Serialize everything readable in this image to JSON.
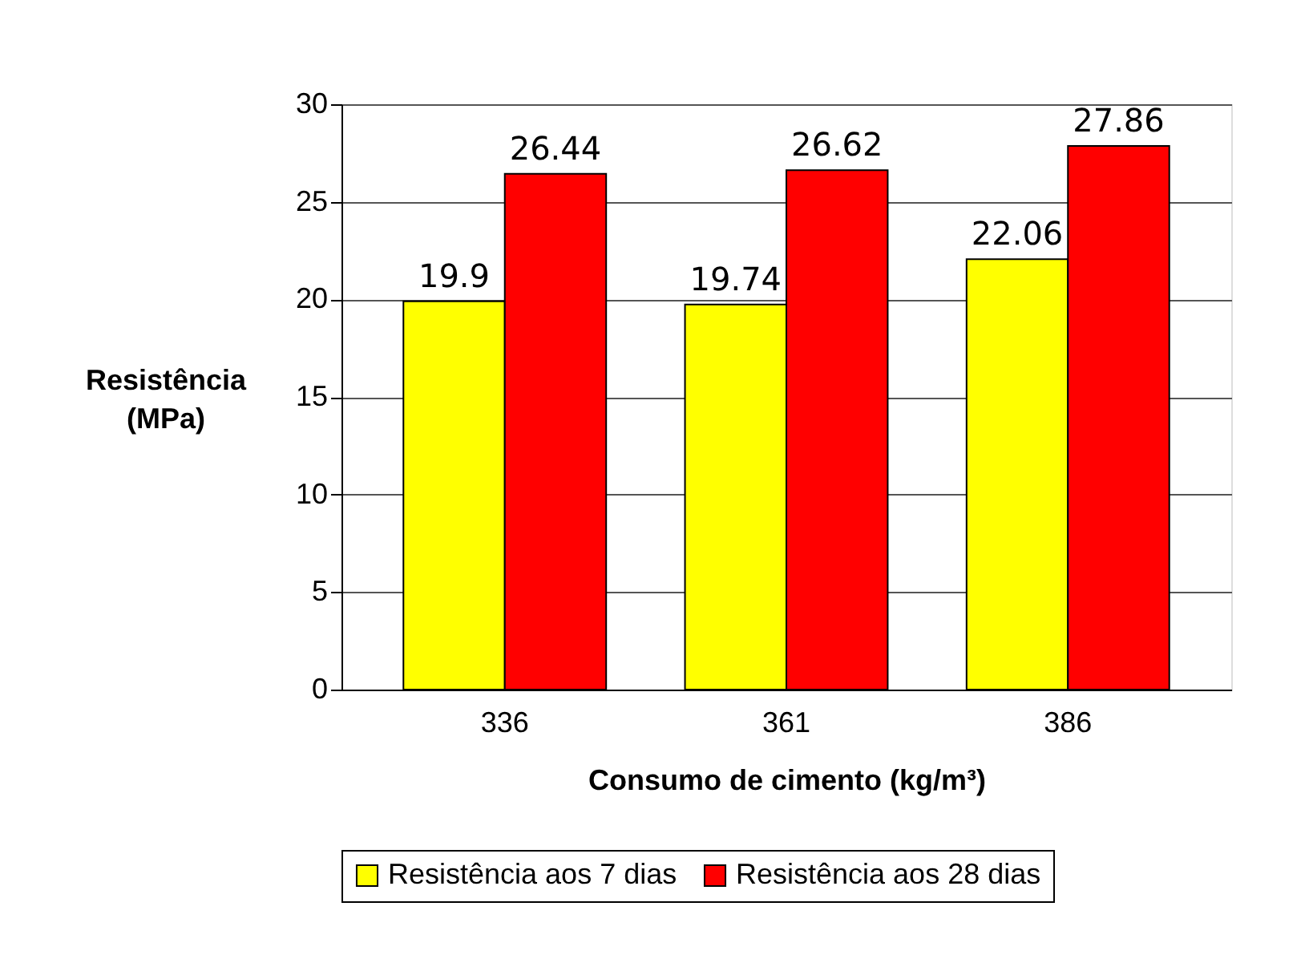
{
  "chart_data": {
    "type": "bar",
    "ylabel": "Resistência\n(MPa)",
    "xlabel": "Consumo de cimento (kg/m³)",
    "categories": [
      "336",
      "361",
      "386"
    ],
    "series": [
      {
        "name": "Resistência aos 7 dias",
        "color": "#ffff00",
        "values": [
          19.9,
          19.74,
          22.06
        ]
      },
      {
        "name": "Resistência aos 28 dias",
        "color": "#ff0000",
        "values": [
          26.44,
          26.62,
          27.86
        ]
      }
    ],
    "ylim": [
      0,
      30
    ],
    "yticks": [
      0,
      5,
      10,
      15,
      20,
      25,
      30
    ],
    "grid": "y",
    "legend": "bottom",
    "data_labels": true
  }
}
